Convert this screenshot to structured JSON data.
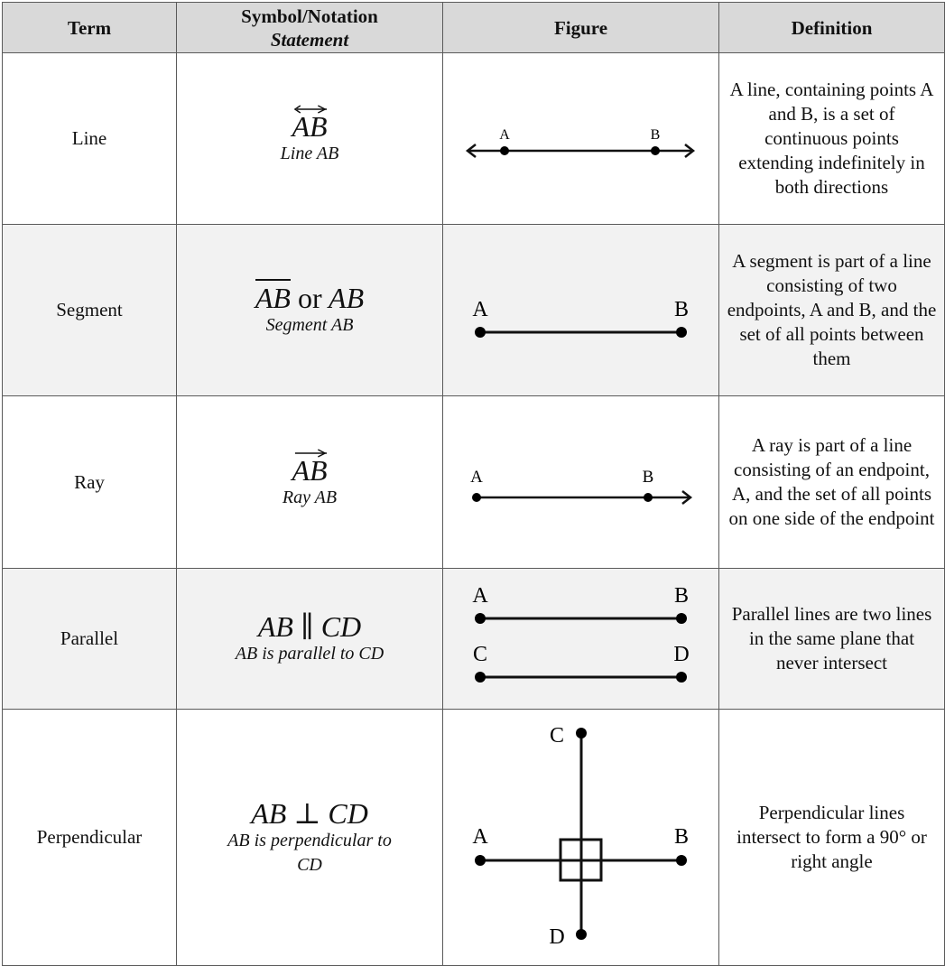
{
  "headers": {
    "term": "Term",
    "symbol": "Symbol/Notation",
    "statement": "Statement",
    "figure": "Figure",
    "definition": "Definition"
  },
  "rows": [
    {
      "term": "Line",
      "symbol": "AB",
      "statement": "Line AB",
      "points": [
        "A",
        "B"
      ],
      "definition": "A line, containing points A and B, is a set of continuous points extending indefinitely in both directions"
    },
    {
      "term": "Segment",
      "symbol": "AB",
      "symbol_or": "or",
      "symbol_alt": "AB",
      "statement": "Segment AB",
      "points": [
        "A",
        "B"
      ],
      "definition": "A segment is part of a line consisting of two endpoints, A and B, and the set of all points between them"
    },
    {
      "term": "Ray",
      "symbol": "AB",
      "statement": "Ray AB",
      "points": [
        "A",
        "B"
      ],
      "definition": "A ray is part of a line consisting of an endpoint, A, and the set of all points on one side of the endpoint"
    },
    {
      "term": "Parallel",
      "symbol": "AB ∥ CD",
      "statement": "AB is parallel to CD",
      "points": [
        "A",
        "B",
        "C",
        "D"
      ],
      "definition": "Parallel lines are two lines in the same plane that never intersect"
    },
    {
      "term": "Perpendicular",
      "symbol": "AB ⊥ CD",
      "statement": "AB is perpendicular to CD",
      "points": [
        "A",
        "B",
        "C",
        "D"
      ],
      "definition": "Perpendicular lines intersect to form a 90° or right angle"
    }
  ],
  "colors": {
    "header_bg": "#d9d9d9",
    "shaded_row": "#f2f2f2",
    "border": "#5a5a5a"
  }
}
